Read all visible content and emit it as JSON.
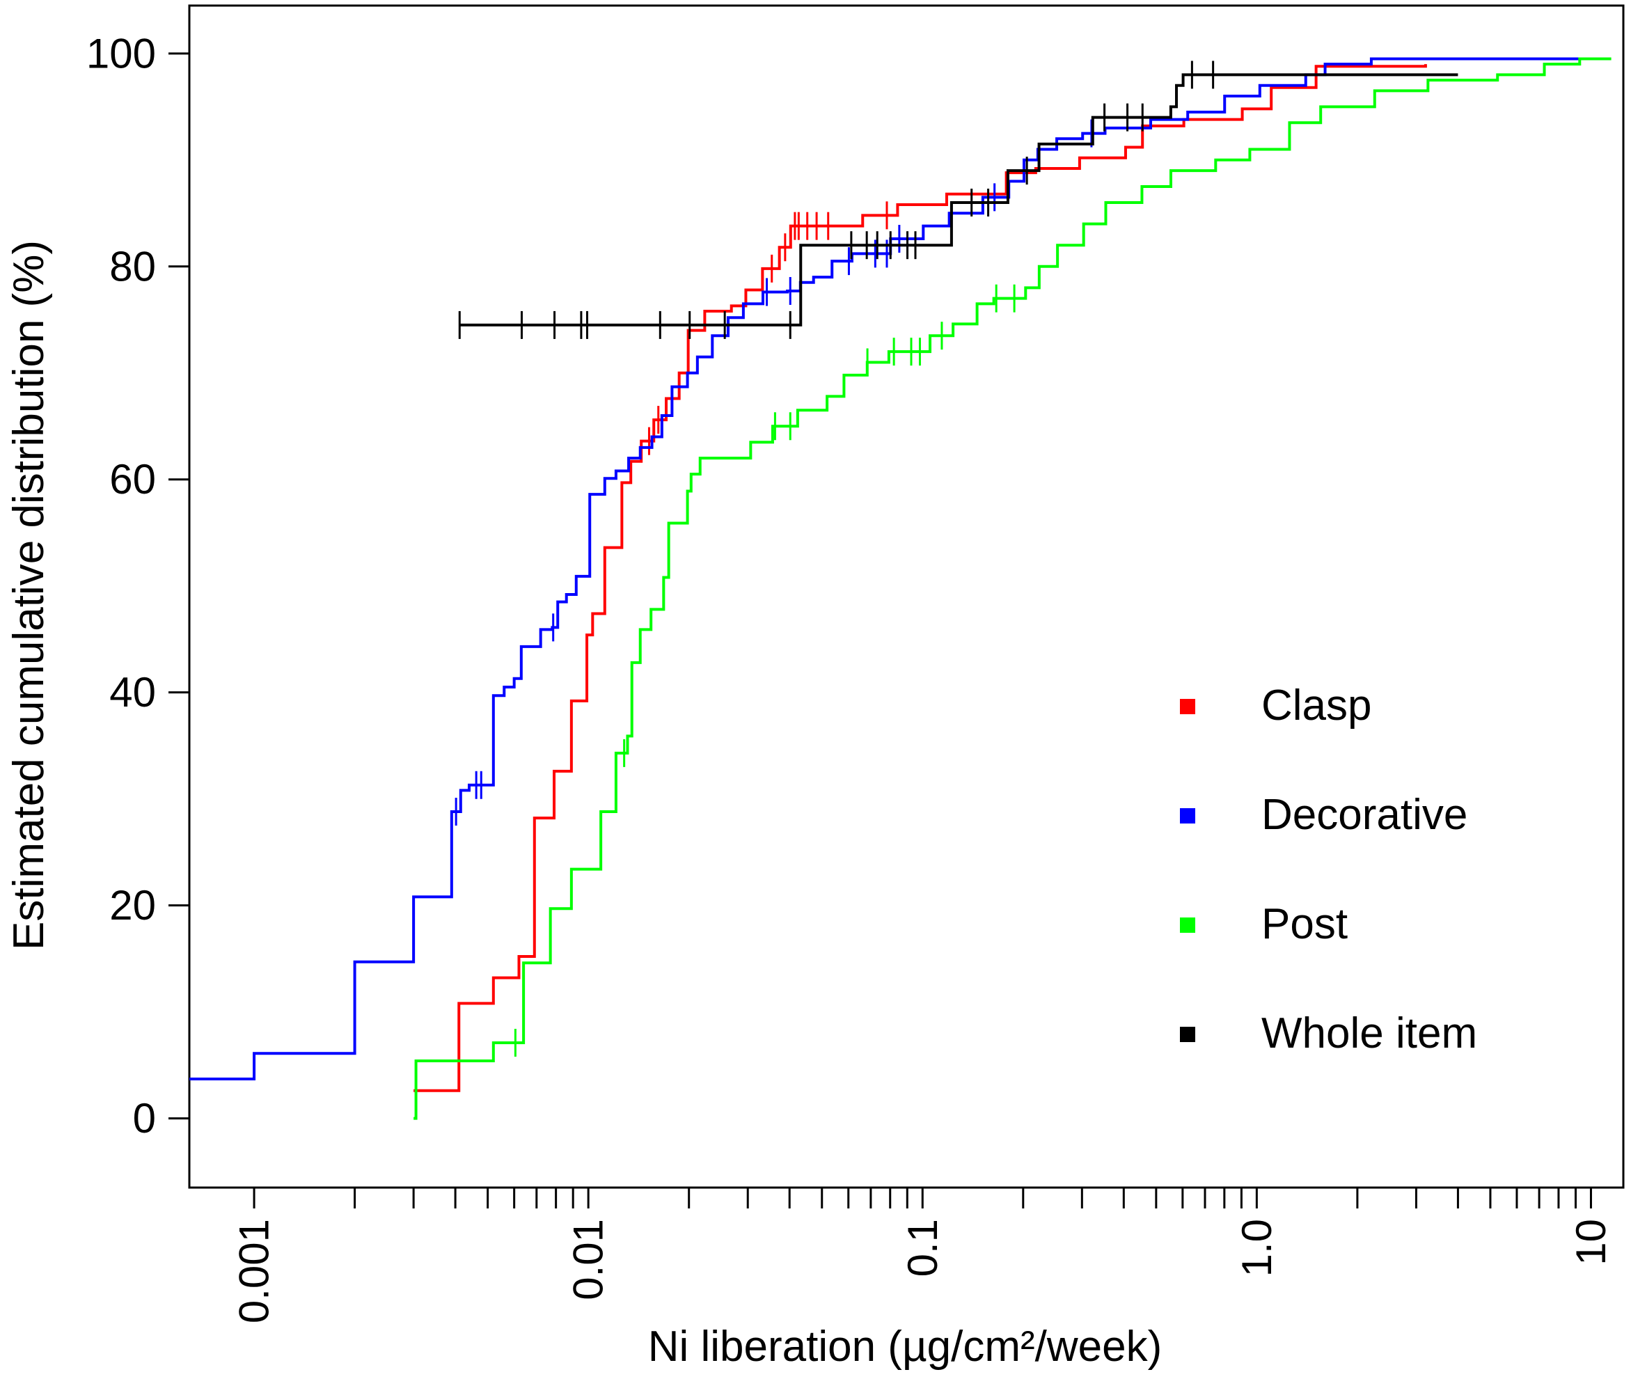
{
  "chart_data": {
    "type": "line",
    "xlabel": "Ni liberation (µg/cm²/week)",
    "ylabel": "Estimated cumulative distribution (%)",
    "xscale": "log",
    "xlim": [
      0.00064,
      12.5
    ],
    "ylim": [
      -6.5,
      104.5
    ],
    "x_tick_labels": [
      {
        "value": 0.001,
        "label": "0.001"
      },
      {
        "value": 0.01,
        "label": "0.01"
      },
      {
        "value": 0.1,
        "label": "0.1"
      },
      {
        "value": 1,
        "label": "1.0"
      },
      {
        "value": 10,
        "label": "10"
      }
    ],
    "y_tick_labels": [
      {
        "value": 0,
        "label": "0"
      },
      {
        "value": 20,
        "label": "20"
      },
      {
        "value": 40,
        "label": "40"
      },
      {
        "value": 60,
        "label": "60"
      },
      {
        "value": 80,
        "label": "80"
      },
      {
        "value": 100,
        "label": "100"
      }
    ],
    "legend_position": "bottom-right",
    "series": [
      {
        "name": "Clasp",
        "color": "#ff0000",
        "steps": [
          [
            0.003,
            2.6
          ],
          [
            0.0041,
            10.8
          ],
          [
            0.0052,
            13.2
          ],
          [
            0.0062,
            15.2
          ],
          [
            0.0069,
            28.2
          ],
          [
            0.0079,
            32.6
          ],
          [
            0.0089,
            39.2
          ],
          [
            0.0099,
            45.4
          ],
          [
            0.0103,
            47.4
          ],
          [
            0.0112,
            53.6
          ],
          [
            0.0126,
            59.7
          ],
          [
            0.0134,
            61.7
          ],
          [
            0.0144,
            63.6
          ],
          [
            0.0157,
            65.6
          ],
          [
            0.0171,
            67.6
          ],
          [
            0.0187,
            70.0
          ],
          [
            0.0199,
            74.0
          ],
          [
            0.0223,
            75.8
          ],
          [
            0.0268,
            76.3
          ],
          [
            0.0296,
            77.8
          ],
          [
            0.0332,
            79.8
          ],
          [
            0.0373,
            81.8
          ],
          [
            0.0403,
            83.8
          ],
          [
            0.0662,
            84.8
          ],
          [
            0.0842,
            85.8
          ],
          [
            0.1181,
            86.8
          ],
          [
            0.1781,
            88.8
          ],
          [
            0.2181,
            89.2
          ],
          [
            0.2951,
            90.2
          ],
          [
            0.4051,
            91.2
          ],
          [
            0.4551,
            93.2
          ],
          [
            0.6051,
            93.8
          ],
          [
            0.9051,
            94.8
          ],
          [
            1.1051,
            96.8
          ],
          [
            1.5051,
            98.8
          ],
          [
            3.2,
            99.0
          ]
        ],
        "censor_x": [
          0.0152,
          0.0162,
          0.0354,
          0.0388,
          0.0415,
          0.0426,
          0.0452,
          0.0482,
          0.0522,
          0.0782
        ]
      },
      {
        "name": "Decorative",
        "color": "#0000ff",
        "steps": [
          [
            0.00064,
            3.7
          ],
          [
            0.001,
            6.1
          ],
          [
            0.002,
            14.7
          ],
          [
            0.003,
            20.8
          ],
          [
            0.0039,
            28.8
          ],
          [
            0.00415,
            30.8
          ],
          [
            0.0044,
            31.3
          ],
          [
            0.0052,
            39.7
          ],
          [
            0.0056,
            40.5
          ],
          [
            0.006,
            41.3
          ],
          [
            0.0063,
            44.3
          ],
          [
            0.0072,
            45.9
          ],
          [
            0.0078,
            46.1
          ],
          [
            0.0081,
            48.5
          ],
          [
            0.0086,
            49.2
          ],
          [
            0.0092,
            50.9
          ],
          [
            0.0101,
            58.6
          ],
          [
            0.0112,
            60.1
          ],
          [
            0.0121,
            60.8
          ],
          [
            0.0132,
            62.0
          ],
          [
            0.0143,
            63.0
          ],
          [
            0.0155,
            64.0
          ],
          [
            0.0166,
            66.0
          ],
          [
            0.0178,
            68.7
          ],
          [
            0.0198,
            70.0
          ],
          [
            0.0212,
            71.5
          ],
          [
            0.0235,
            73.5
          ],
          [
            0.0262,
            75.2
          ],
          [
            0.0291,
            76.5
          ],
          [
            0.0333,
            77.6
          ],
          [
            0.0394,
            77.7
          ],
          [
            0.0431,
            78.5
          ],
          [
            0.0472,
            79.0
          ],
          [
            0.0536,
            80.5
          ],
          [
            0.0615,
            81.2
          ],
          [
            0.0802,
            82.6
          ],
          [
            0.1005,
            83.8
          ],
          [
            0.1202,
            85.0
          ],
          [
            0.1515,
            86.5
          ],
          [
            0.1812,
            88.0
          ],
          [
            0.2012,
            90.0
          ],
          [
            0.2213,
            91.0
          ],
          [
            0.2521,
            92.0
          ],
          [
            0.3013,
            92.5
          ],
          [
            0.3517,
            93.0
          ],
          [
            0.4816,
            93.8
          ],
          [
            0.6215,
            94.5
          ],
          [
            0.8015,
            96.0
          ],
          [
            1.0215,
            97.0
          ],
          [
            1.4015,
            98.0
          ],
          [
            1.6015,
            99.0
          ],
          [
            2.2015,
            99.5
          ],
          [
            9.2,
            99.5
          ]
        ],
        "censor_x": [
          0.00402,
          0.00462,
          0.00478,
          0.00785,
          0.0342,
          0.0402,
          0.0602,
          0.0722,
          0.0782,
          0.0852,
          0.1642,
          0.3202
        ]
      },
      {
        "name": "Post",
        "color": "#00ff00",
        "steps": [
          [
            0.003,
            0.0
          ],
          [
            0.00305,
            5.4
          ],
          [
            0.0052,
            7.1
          ],
          [
            0.0064,
            14.6
          ],
          [
            0.0077,
            19.7
          ],
          [
            0.0089,
            23.4
          ],
          [
            0.0109,
            28.8
          ],
          [
            0.0121,
            34.3
          ],
          [
            0.0131,
            35.9
          ],
          [
            0.0135,
            42.8
          ],
          [
            0.0143,
            45.9
          ],
          [
            0.0154,
            47.8
          ],
          [
            0.0168,
            50.8
          ],
          [
            0.0174,
            55.9
          ],
          [
            0.0198,
            58.9
          ],
          [
            0.0203,
            60.5
          ],
          [
            0.0216,
            62.0
          ],
          [
            0.0306,
            63.5
          ],
          [
            0.0356,
            65.0
          ],
          [
            0.0423,
            66.5
          ],
          [
            0.0518,
            67.8
          ],
          [
            0.0582,
            69.8
          ],
          [
            0.0683,
            71.0
          ],
          [
            0.0793,
            72.0
          ],
          [
            0.1053,
            73.5
          ],
          [
            0.1234,
            74.6
          ],
          [
            0.1456,
            76.5
          ],
          [
            0.1634,
            77.0
          ],
          [
            0.2034,
            78.0
          ],
          [
            0.2234,
            80.0
          ],
          [
            0.2534,
            82.0
          ],
          [
            0.3034,
            84.0
          ],
          [
            0.3534,
            86.0
          ],
          [
            0.4534,
            87.5
          ],
          [
            0.5534,
            89.0
          ],
          [
            0.7534,
            90.0
          ],
          [
            0.9534,
            91.0
          ],
          [
            1.2534,
            93.5
          ],
          [
            1.5534,
            95.0
          ],
          [
            2.2534,
            96.5
          ],
          [
            3.2534,
            97.5
          ],
          [
            5.2534,
            98.0
          ],
          [
            7.2534,
            99.0
          ],
          [
            9.2534,
            99.5
          ],
          [
            11.5,
            99.5
          ]
        ],
        "censor_x": [
          0.00605,
          0.0128,
          0.0362,
          0.0402,
          0.0684,
          0.0821,
          0.0925,
          0.0982,
          0.1142,
          0.1662,
          0.1882
        ]
      },
      {
        "name": "Whole item",
        "color": "#000000",
        "steps": [
          [
            0.0041,
            74.5
          ],
          [
            0.0432,
            82.0
          ],
          [
            0.1221,
            86.0
          ],
          [
            0.1801,
            89.0
          ],
          [
            0.2231,
            91.5
          ],
          [
            0.3231,
            94.0
          ],
          [
            0.5531,
            95.0
          ],
          [
            0.5751,
            97.0
          ],
          [
            0.6021,
            98.0
          ],
          [
            4.0,
            98.0
          ]
        ],
        "censor_x": [
          0.00412,
          0.00632,
          0.00792,
          0.00952,
          0.00992,
          0.0164,
          0.0201,
          0.0256,
          0.0402,
          0.0612,
          0.0681,
          0.0732,
          0.0802,
          0.0901,
          0.0952,
          0.1402,
          0.1572,
          0.2052,
          0.3502,
          0.4102,
          0.4552,
          0.6402,
          0.7402
        ]
      }
    ]
  }
}
